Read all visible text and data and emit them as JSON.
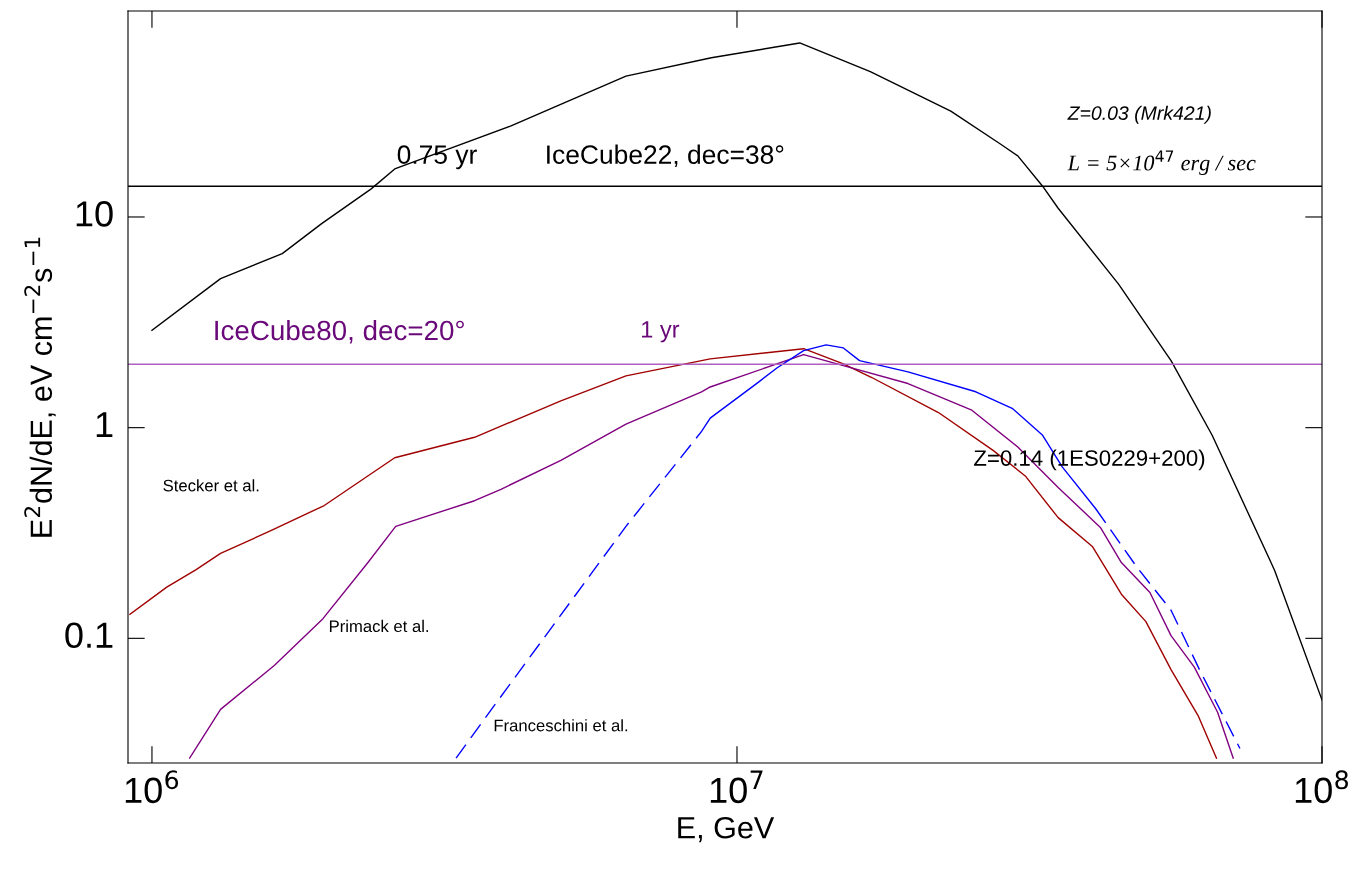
{
  "chart_data": {
    "type": "line",
    "xlabel": "E, GeV",
    "ylabel": "E$^{2}$dN/dE, eV cm$^{−2}$s$^{−1}$",
    "log": "xy",
    "grid": false,
    "marker": "none",
    "xlim": [
      910000,
      100000000
    ],
    "ylim": [
      0.0256,
      95
    ],
    "xticks": [
      {
        "value": 1000000,
        "label": "10$^{6}$"
      },
      {
        "value": 10000000,
        "label": "10$^{7}$"
      },
      {
        "value": 100000000,
        "label": "10$^{8}$"
      }
    ],
    "yticks": [
      0.1,
      1,
      10
    ],
    "series": [
      {
        "color": "#000000",
        "line_style": "solid",
        "x": [
          1000000,
          1310000,
          1670000,
          1950000,
          2370000,
          2600000,
          4100000,
          6460000,
          9040000,
          12800000,
          16900000,
          23200000,
          28200000,
          30200000,
          33300000,
          35400000,
          44900000,
          55200000,
          64900000,
          83000000,
          100000000
        ],
        "values": [
          2.9,
          5.1,
          6.7,
          9.3,
          13.6,
          16.9,
          27,
          46.6,
          57,
          67,
          49,
          31.8,
          22.2,
          19.5,
          14,
          11,
          4.8,
          2.08,
          0.92,
          0.21,
          0.051
        ]
      },
      {
        "color": "#a00000",
        "line_style": "solid",
        "x": [
          917000,
          1060000,
          1190000,
          1310000,
          1600000,
          1970000,
          2600000,
          3560000,
          5000000,
          6460000,
          9000000,
          13000000,
          15200000,
          17000000,
          22100000,
          27400000,
          31100000,
          35400000,
          40500000,
          45400000,
          50000000,
          55200000,
          61400000,
          66000000
        ],
        "values": [
          0.13,
          0.175,
          0.212,
          0.253,
          0.325,
          0.427,
          0.72,
          0.9,
          1.34,
          1.76,
          2.12,
          2.37,
          2.01,
          1.73,
          1.18,
          0.78,
          0.59,
          0.374,
          0.273,
          0.162,
          0.12,
          0.071,
          0.043,
          0.027
        ]
      },
      {
        "color": "#800080",
        "line_style": "solid",
        "x": [
          1160000,
          1310000,
          1620000,
          1960000,
          2340000,
          2610000,
          3560000,
          3950000,
          5000000,
          6460000,
          8700000,
          9000000,
          13000000,
          15200000,
          19600000,
          25200000,
          30200000,
          35400000,
          41800000,
          45400000,
          50800000,
          55200000,
          60500000,
          66300000,
          70500000
        ],
        "values": [
          0.027,
          0.046,
          0.0745,
          0.124,
          0.229,
          0.34,
          0.45,
          0.51,
          0.7,
          1.04,
          1.48,
          1.56,
          2.22,
          1.97,
          1.62,
          1.21,
          0.81,
          0.52,
          0.336,
          0.229,
          0.165,
          0.103,
          0.073,
          0.0446,
          0.027
        ]
      },
      {
        "color": "#0000ff",
        "line_style": "dashed",
        "x": [
          3310000,
          3910000,
          6460000,
          8700000
        ],
        "values": [
          0.027,
          0.051,
          0.34,
          0.96
        ]
      },
      {
        "color": "#0000ff",
        "line_style": "solid",
        "x": [
          8700000,
          9000000,
          10900000,
          11700000,
          13000000,
          14200000,
          15200000,
          16200000,
          19600000,
          25600000,
          29600000,
          33300000,
          36000000,
          41100000
        ],
        "values": [
          0.96,
          1.11,
          1.65,
          1.92,
          2.32,
          2.47,
          2.39,
          2.08,
          1.84,
          1.48,
          1.23,
          0.92,
          0.65,
          0.41
        ]
      },
      {
        "color": "#0000ff",
        "line_style": "dashed",
        "x": [
          41100000,
          48300000,
          55200000,
          61900000,
          72400000
        ],
        "values": [
          0.41,
          0.217,
          0.136,
          0.07,
          0.03
        ]
      }
    ],
    "ref_lines": [
      {
        "axis": "y",
        "value": 14,
        "color": "#000000"
      },
      {
        "axis": "y",
        "value": 2,
        "color": "#b060c0"
      }
    ],
    "annotations": [
      "0.75 yr",
      "IceCube22, dec=38°",
      "IceCube80, dec=20°",
      "1 yr",
      "Z=0.03 (Mrk421)",
      "L = 5×10$^{47}$ erg / sec",
      "Z=0.14 (1ES0229+200)",
      "Stecker et al.",
      "Primack et al.",
      "Franceschini et al."
    ]
  }
}
